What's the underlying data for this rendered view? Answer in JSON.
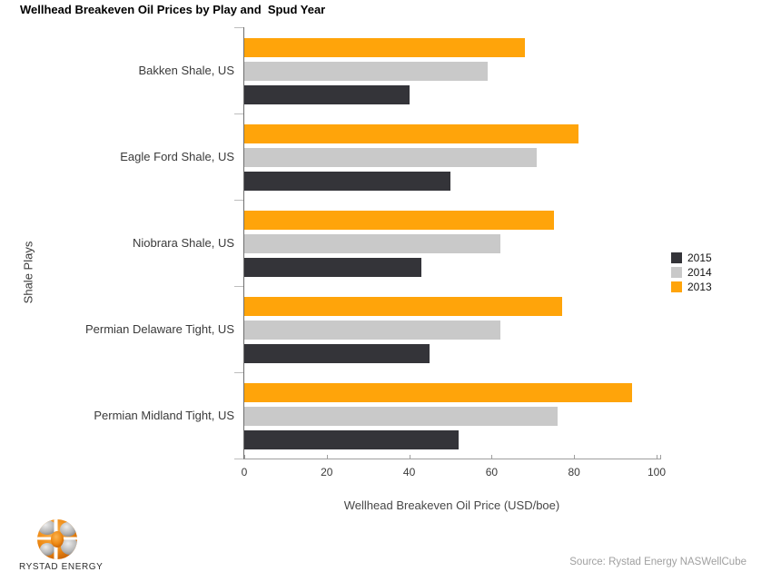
{
  "chart_data": {
    "type": "bar",
    "orientation": "horizontal",
    "title": "Wellhead Breakeven Oil Prices by Play and  Spud Year",
    "categories": [
      "Bakken Shale, US",
      "Eagle Ford Shale, US",
      "Niobrara Shale, US",
      "Permian Delaware Tight, US",
      "Permian Midland Tight, US"
    ],
    "series": [
      {
        "name": "2015",
        "color": "#343439",
        "values": [
          40,
          50,
          43,
          45,
          52
        ]
      },
      {
        "name": "2014",
        "color": "#c9c9c9",
        "values": [
          59,
          71,
          62,
          62,
          76
        ]
      },
      {
        "name": "2013",
        "color": "#ffa40a",
        "values": [
          68,
          81,
          75,
          77,
          94
        ]
      }
    ],
    "bar_order_top_to_bottom": [
      "2013",
      "2014",
      "2015"
    ],
    "xlabel": "Wellhead Breakeven Oil Price (USD/boe)",
    "ylabel": "Shale Plays",
    "xlim": [
      0,
      100
    ],
    "xticks": [
      0,
      20,
      40,
      60,
      80,
      100
    ],
    "legend_position": "center-right",
    "grid": false,
    "axis_colors": {
      "y_axis": "#6e6e6e",
      "x_axis": "#9e9e9e",
      "category_tick": "#bdbdbd"
    }
  },
  "footer": {
    "logo_text": "RYSTAD ENERGY",
    "source": "Source: Rystad Energy NASWellCube"
  }
}
